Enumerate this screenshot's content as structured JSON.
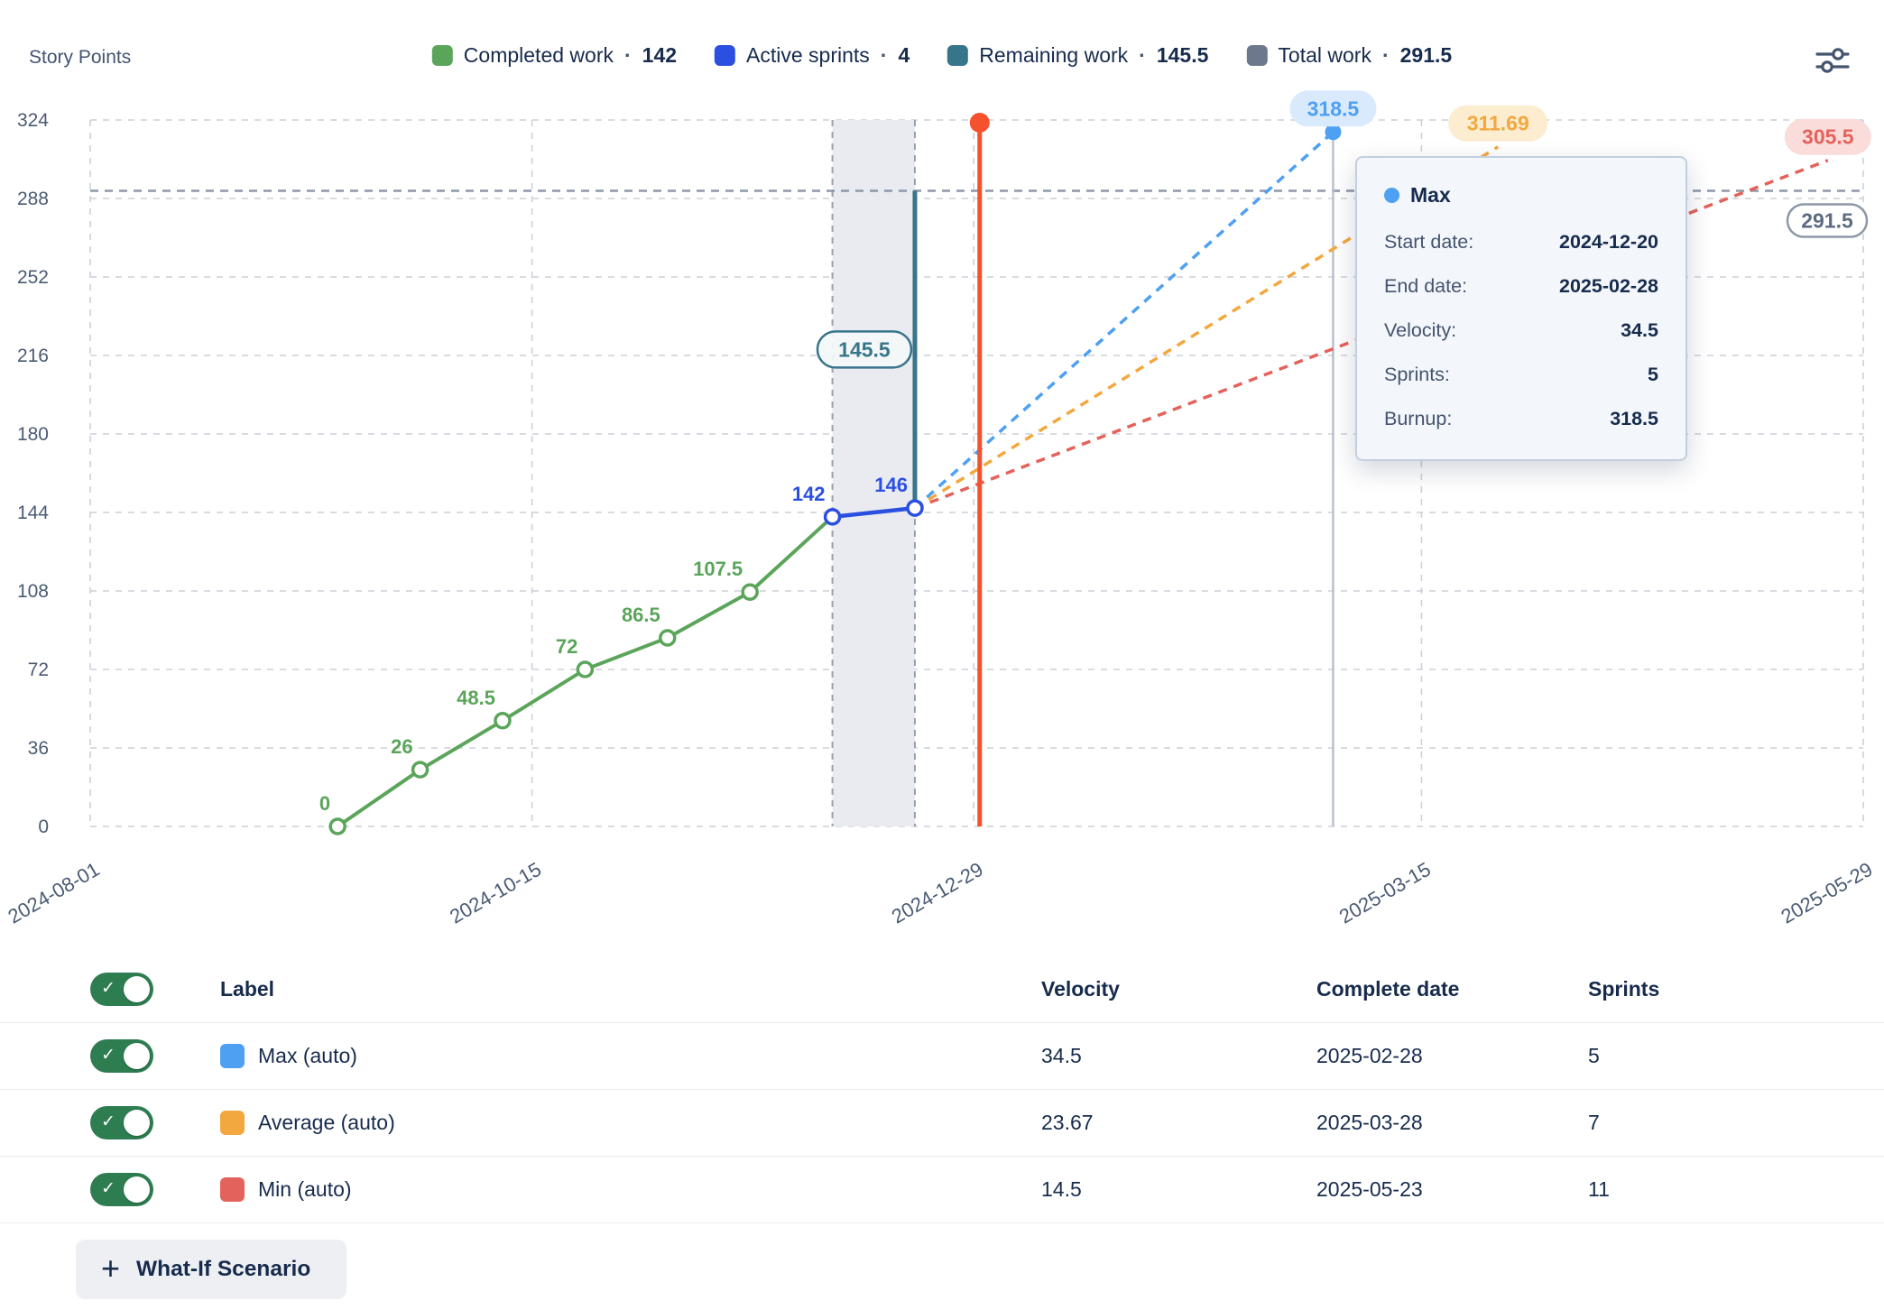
{
  "header": {
    "axis_title": "Story Points",
    "legend_separator": "·",
    "legend": [
      {
        "id": "completed-work",
        "label": "Completed work",
        "value": "142",
        "color": "#5ba55b"
      },
      {
        "id": "active-sprints",
        "label": "Active sprints",
        "value": "4",
        "color": "#2b4fe0"
      },
      {
        "id": "remaining-work",
        "label": "Remaining work",
        "value": "145.5",
        "color": "#37758b"
      },
      {
        "id": "total-work",
        "label": "Total work",
        "value": "291.5",
        "color": "#6c798c"
      }
    ]
  },
  "chart_data": {
    "type": "line",
    "title": "",
    "ylabel": "Story Points",
    "ylim": [
      0,
      324
    ],
    "yticks": [
      0,
      36,
      72,
      108,
      144,
      180,
      216,
      252,
      288,
      324
    ],
    "x_domain": [
      "2024-08-01",
      "2025-05-29"
    ],
    "xticks": [
      "2024-08-01",
      "2024-10-15",
      "2024-12-29",
      "2025-03-15",
      "2025-05-29"
    ],
    "grid": true,
    "active_sprint_band": {
      "start": "2024-12-05",
      "end": "2024-12-19"
    },
    "completed_work": {
      "name": "Completed work",
      "color": "#5ba55b",
      "points": [
        {
          "date": "2024-09-12",
          "value": 0
        },
        {
          "date": "2024-09-26",
          "value": 26
        },
        {
          "date": "2024-10-10",
          "value": 48.5
        },
        {
          "date": "2024-10-24",
          "value": 72
        },
        {
          "date": "2024-11-07",
          "value": 86.5
        },
        {
          "date": "2024-11-21",
          "value": 107.5
        },
        {
          "date": "2024-12-05",
          "value": 142
        }
      ]
    },
    "active_sprints": {
      "name": "Active sprints",
      "color": "#2b4fe0",
      "points": [
        {
          "date": "2024-12-05",
          "value": 142
        },
        {
          "date": "2024-12-19",
          "value": 146
        }
      ]
    },
    "remaining_work": {
      "name": "Remaining work",
      "color": "#37758b",
      "date": "2024-12-19",
      "from": 146,
      "to": 291.5,
      "label": "145.5"
    },
    "total_work": {
      "name": "Total work",
      "color": "#8d98a7",
      "value": 291.5,
      "label": "291.5"
    },
    "today_marker": {
      "color": "#f4512c",
      "date": "2024-12-30"
    },
    "completion_marker": {
      "color": "#bac2cd",
      "date": "2025-02-28"
    },
    "forecast_start": {
      "date": "2024-12-19",
      "value": 146
    },
    "forecasts": [
      {
        "name": "Max",
        "color": "#4da0f2",
        "pill_bg": "#d9eafc",
        "end_date": "2025-02-28",
        "end_value": 318.5,
        "label": "318.5",
        "endpoint_dot": true
      },
      {
        "name": "Average",
        "color": "#f2a83e",
        "pill_bg": "#fcecd0",
        "end_date": "2025-03-28",
        "end_value": 311.69,
        "label": "311.69",
        "endpoint_dot": false
      },
      {
        "name": "Min",
        "color": "#e4625c",
        "pill_bg": "#fadcda",
        "end_date": "2025-05-23",
        "end_value": 305.5,
        "label": "305.5",
        "endpoint_dot": false
      }
    ]
  },
  "tooltip": {
    "title": "Max",
    "dot_color": "#4da0f2",
    "rows": [
      {
        "label": "Start date:",
        "value": "2024-12-20"
      },
      {
        "label": "End date:",
        "value": "2025-02-28"
      },
      {
        "label": "Velocity:",
        "value": "34.5"
      },
      {
        "label": "Sprints:",
        "value": "5"
      },
      {
        "label": "Burnup:",
        "value": "318.5"
      }
    ]
  },
  "table": {
    "toggle_check": "✓",
    "headers": {
      "label": "Label",
      "velocity": "Velocity",
      "complete_date": "Complete date",
      "sprints": "Sprints"
    },
    "rows": [
      {
        "id": "max",
        "label": "Max (auto)",
        "color": "#4da0f2",
        "velocity": "34.5",
        "complete_date": "2025-02-28",
        "sprints": "5",
        "enabled": true
      },
      {
        "id": "average",
        "label": "Average (auto)",
        "color": "#f2a83e",
        "velocity": "23.67",
        "complete_date": "2025-03-28",
        "sprints": "7",
        "enabled": true
      },
      {
        "id": "min",
        "label": "Min (auto)",
        "color": "#e4625c",
        "velocity": "14.5",
        "complete_date": "2025-05-23",
        "sprints": "11",
        "enabled": true
      }
    ]
  },
  "whatif_button": {
    "plus": "+",
    "label": "What-If Scenario"
  }
}
